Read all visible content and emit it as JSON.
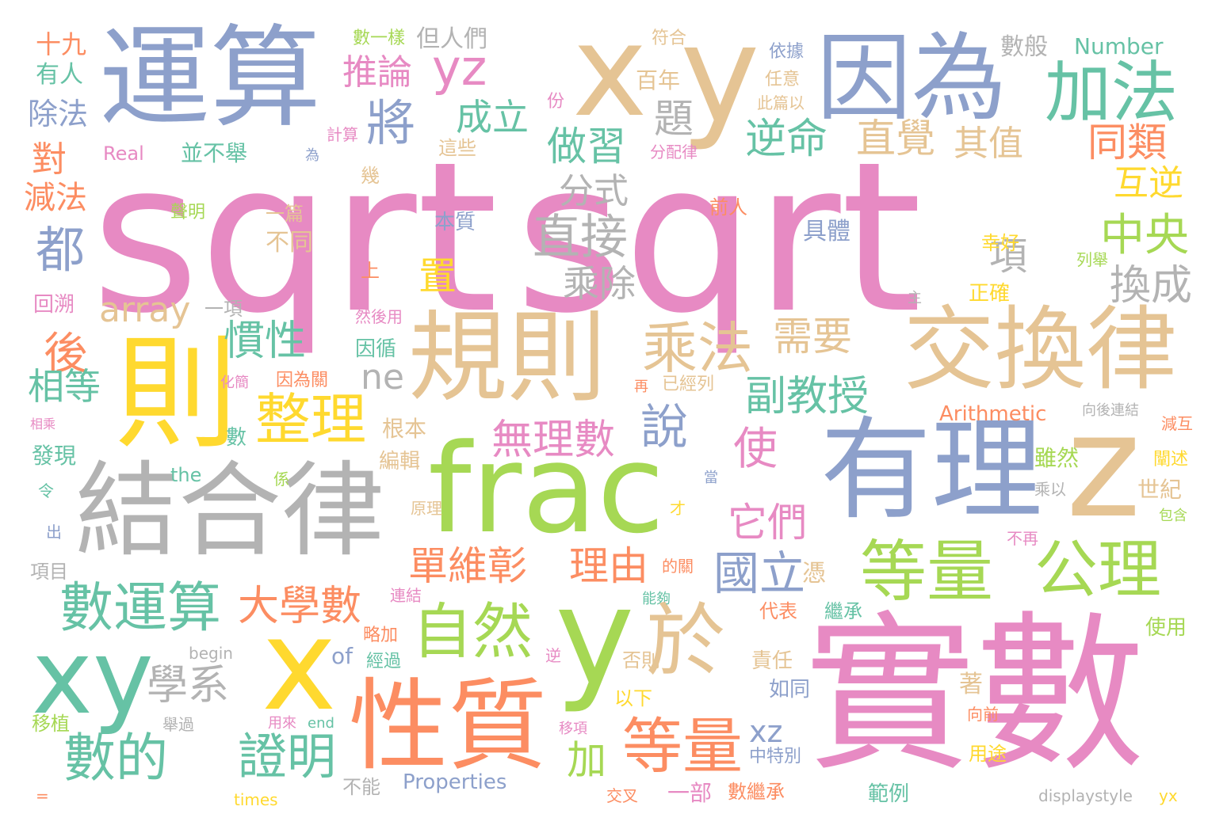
{
  "words": {
    "sqrt_a": "sqrt",
    "sqrt_b": "sqrt",
    "yunsuan": "運算",
    "x_top": "x",
    "y_top": "y",
    "yinwei": "因為",
    "jiafa": "加法",
    "shishu": "實數",
    "jiehelu": "結合律",
    "frac": "frac",
    "youli": "有理",
    "z": "z",
    "guize": "規則",
    "jiaohuanlu": "交換律",
    "ze": "則",
    "y_big": "y",
    "x_big": "x",
    "xy": "xy",
    "xingzhi": "性質",
    "yu": "於",
    "ziran": "自然",
    "dengliang_a": "等量",
    "dengliang_b": "等量",
    "gongli": "公理",
    "yz": "yz",
    "tuilun": "推論",
    "jiang": "將",
    "chengli": "成立",
    "zuoxi": "做習",
    "ti": "題",
    "niming": "逆命",
    "zhijue": "直覺",
    "qizhi": "其值",
    "tonglei": "同類",
    "huni": "互逆",
    "zhongyang": "中央",
    "fenshi": "分式",
    "zhijie": "直接",
    "dou": "都",
    "xiang_a": "項",
    "huancheng": "換成",
    "chengchu": "乘除",
    "zhi": "置",
    "array": "array",
    "chengfa": "乘法",
    "xuyao": "需要",
    "guanxing": "慣性",
    "hou": "後",
    "ne": "ne",
    "fujiaoshou": "副教授",
    "zhengli": "整理",
    "shuo": "說",
    "wulishu": "無理數",
    "shi": "使",
    "xiangdeng": "相等",
    "tamen": "它們",
    "shuyunsuan": "數運算",
    "danweizhang": "單維彰",
    "liyou": "理由",
    "guoli": "國立",
    "daxueshu": "大學數",
    "xuexi": "學系",
    "shude": "數的",
    "zhengming": "證明",
    "xz": "xz",
    "jia": "加",
    "dui": "對",
    "jianfa": "減法",
    "chufa": "除法",
    "shijiu": "十九",
    "youren": "有人",
    "shuyiyang": "數一樣",
    "danrenmen": "但人們",
    "fu": "符合",
    "yiju": "依據",
    "shuban": "數般",
    "number_a": "Number",
    "bainian": "百年",
    "renyi": "任意",
    "fen": "份",
    "cipian": "此篇以",
    "jisuan": "計算",
    "real": "Real",
    "bingbuju": "並不舉",
    "wei": "為",
    "fenpeilu": "分配律",
    "zhexie": "這些",
    "ji": "幾",
    "shengming": "聲明",
    "yipian": "一篇",
    "qianren": "前人",
    "benzhi": "本質",
    "butong": "不同",
    "juti": "具體",
    "xinghao": "幸好",
    "liejue": "列舉",
    "shang": "上",
    "zhu": "主",
    "zhengque": "正確",
    "huisu": "回溯",
    "yixiang": "一項",
    "ranhouyong": "然後用",
    "yinxun": "因循",
    "huajian": "化簡",
    "yinweiguan": "因為關",
    "zai": "再",
    "yijinglie": "已經列",
    "arithmetic": "Arithmetic",
    "xianghoulianjie": "向後連結",
    "xiangcheng": "相乘",
    "genben": "根本",
    "shu": "數",
    "suiran": "雖然",
    "jianhu": "減互",
    "faxian": "發現",
    "bianji": "編輯",
    "chanshu": "闡述",
    "the": "the",
    "xi": "係",
    "dang": "當",
    "chengyi": "乘以",
    "shiji": "世紀",
    "ling": "令",
    "yuanli": "原理",
    "cai": "才",
    "baohan": "包含",
    "chu": "出",
    "buzai": "不再",
    "xiangmu": "項目",
    "deguan": "的關",
    "ping": "憑",
    "lianjie": "連結",
    "nenggou": "能夠",
    "daibiao": "代表",
    "jicheng": "繼承",
    "shiyong": "使用",
    "luejia": "略加",
    "ni": "逆",
    "jingguo": "經過",
    "of": "of",
    "fouze": "否則",
    "zeren": "責任",
    "begin": "begin",
    "ruotong": "如同",
    "zhu2": "著",
    "yixia": "以下",
    "yizhi": "移植",
    "juguo": "舉過",
    "yonglai": "用來",
    "end": "end",
    "yixiang2": "移項",
    "xiangqian": "向前",
    "zhongtebie": "中特別",
    "yongtu": "用途",
    "buneng": "不能",
    "properties": "Properties",
    "yibu": "一部",
    "shujicheng": "數繼承",
    "jiaocha": "交叉",
    "fanli": "範例",
    "eq": "=",
    "times": "times",
    "displaystyle": "displaystyle",
    "yx": "yx"
  }
}
